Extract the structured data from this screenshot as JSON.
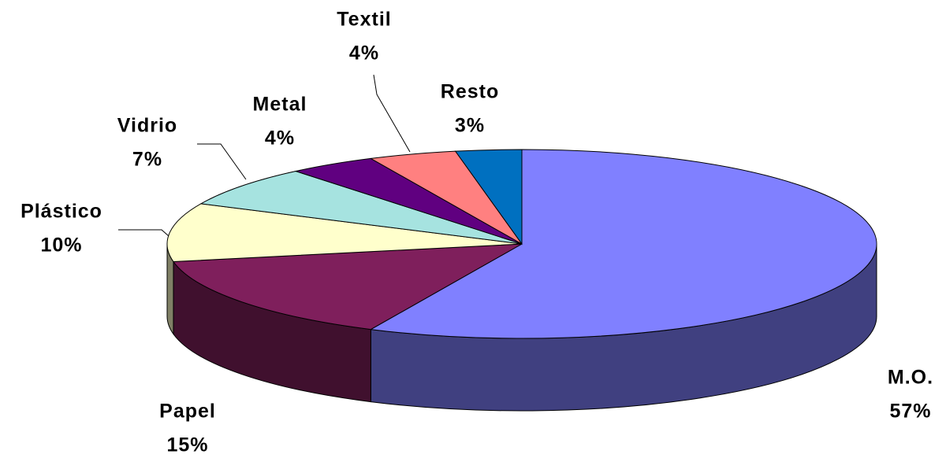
{
  "chart_data": {
    "type": "pie3d",
    "categories": [
      "M.O.",
      "Papel",
      "Plástico",
      "Vidrio",
      "Metal",
      "Textil",
      "Resto"
    ],
    "values": [
      57,
      15,
      10,
      7,
      4,
      4,
      3
    ],
    "value_labels": [
      "57%",
      "15%",
      "10%",
      "7%",
      "4%",
      "4%",
      "3%"
    ],
    "colors": [
      "#8080ff",
      "#7f1f5c",
      "#ffffcc",
      "#a6e3e0",
      "#600080",
      "#ff8080",
      "#0070c0"
    ]
  }
}
